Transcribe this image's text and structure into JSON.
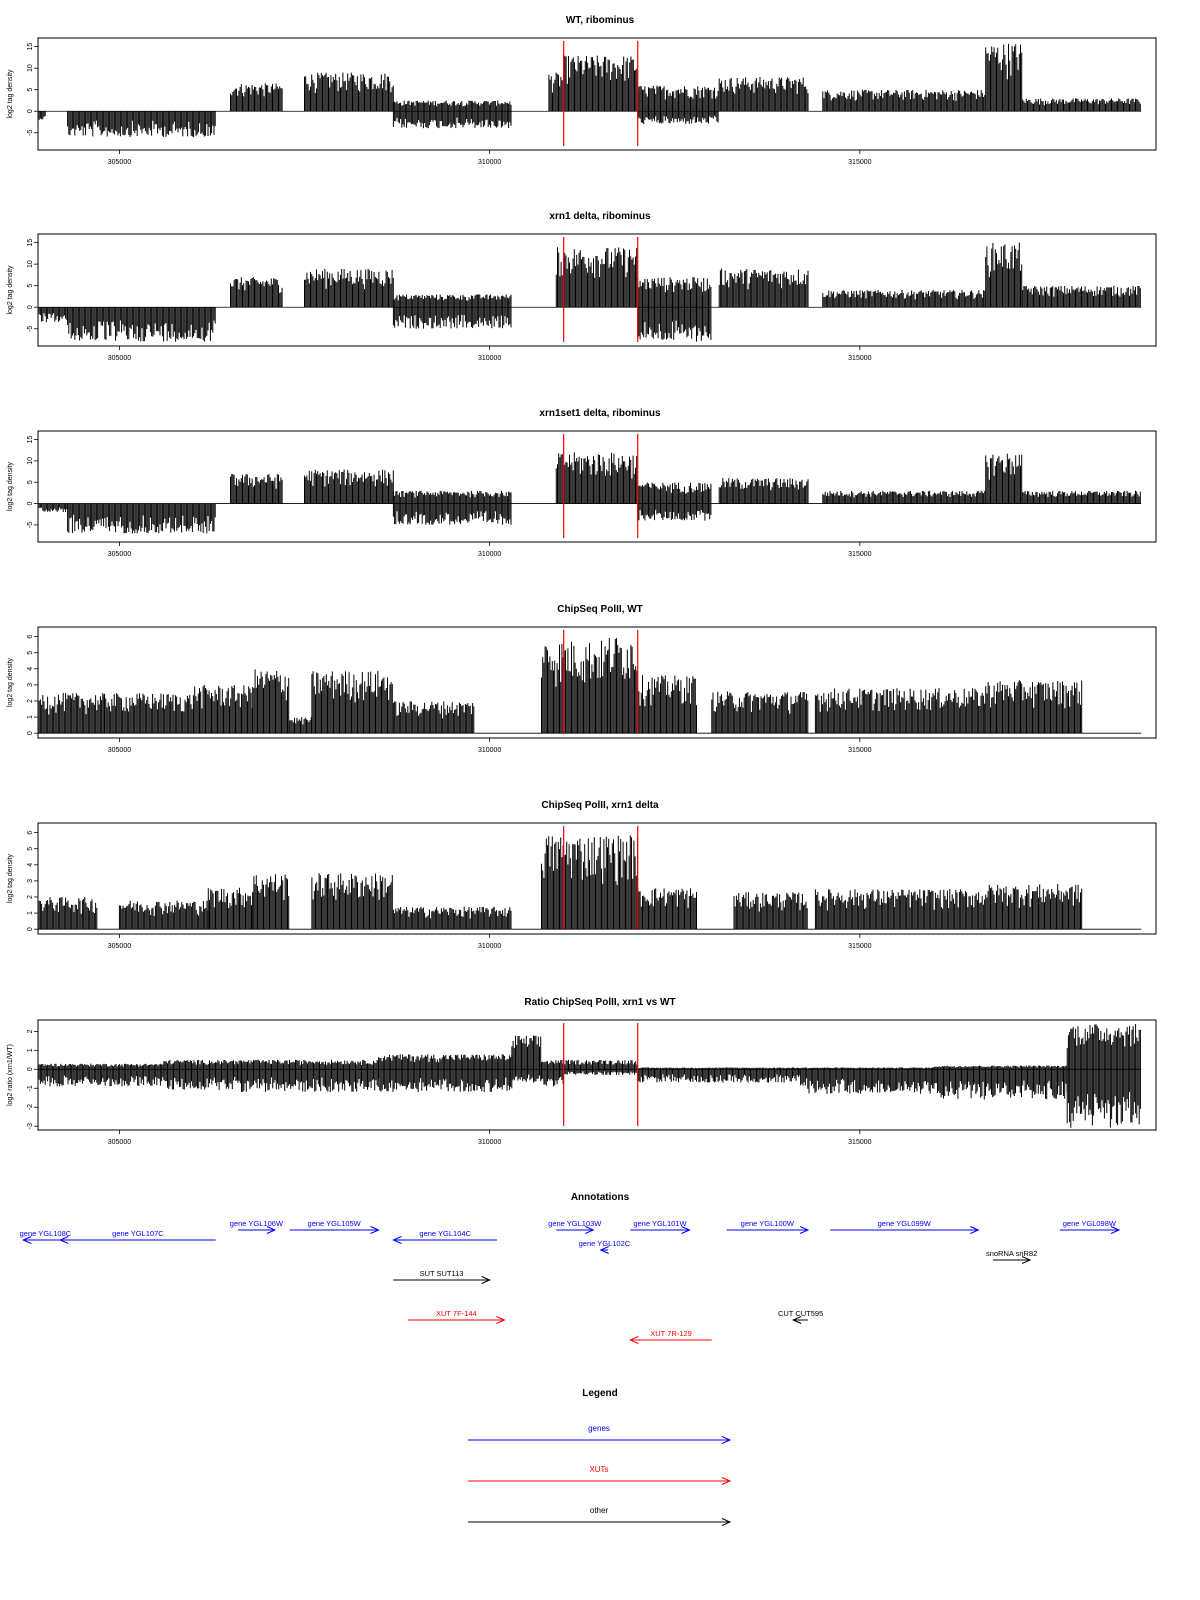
{
  "colors": {
    "gene": "#0000ff",
    "xut": "#ff0000",
    "other": "#000000",
    "marker": "#ff0000",
    "ink": "#000000"
  },
  "chart_data": [
    {
      "type": "area",
      "title": "WT, ribominus",
      "ylabel": "log2 tag density",
      "xlim": [
        303900,
        319000
      ],
      "ylim": [
        -9,
        17
      ],
      "yticks": [
        -5,
        0,
        5,
        10,
        15
      ],
      "xticks": [
        305000,
        310000,
        315000
      ],
      "markers": [
        311000,
        312000
      ],
      "segments": [
        {
          "x0": 303900,
          "x1": 304000,
          "lo": -2,
          "hi": 0
        },
        {
          "x0": 304300,
          "x1": 306300,
          "lo": -6,
          "hi": 0
        },
        {
          "x0": 306500,
          "x1": 307200,
          "lo": 0,
          "hi": 6.5
        },
        {
          "x0": 307500,
          "x1": 308700,
          "lo": 0,
          "hi": 9
        },
        {
          "x0": 308700,
          "x1": 310300,
          "lo": -4,
          "hi": 2.5
        },
        {
          "x0": 310800,
          "x1": 311000,
          "lo": 0,
          "hi": 9
        },
        {
          "x0": 311000,
          "x1": 312000,
          "lo": 0,
          "hi": 13
        },
        {
          "x0": 312000,
          "x1": 313100,
          "lo": -3,
          "hi": 6
        },
        {
          "x0": 313100,
          "x1": 314300,
          "lo": 0,
          "hi": 8
        },
        {
          "x0": 314500,
          "x1": 316700,
          "lo": 0,
          "hi": 5
        },
        {
          "x0": 316700,
          "x1": 317200,
          "lo": 0,
          "hi": 16
        },
        {
          "x0": 317200,
          "x1": 318800,
          "lo": 0,
          "hi": 3
        }
      ]
    },
    {
      "type": "area",
      "title": "xrn1 delta, ribominus",
      "ylabel": "log2 tag density",
      "xlim": [
        303900,
        319000
      ],
      "ylim": [
        -9,
        17
      ],
      "yticks": [
        -5,
        0,
        5,
        10,
        15
      ],
      "xticks": [
        305000,
        310000,
        315000
      ],
      "markers": [
        311000,
        312000
      ],
      "segments": [
        {
          "x0": 303900,
          "x1": 304300,
          "lo": -3.5,
          "hi": 0
        },
        {
          "x0": 304300,
          "x1": 306300,
          "lo": -8,
          "hi": 0
        },
        {
          "x0": 306500,
          "x1": 307200,
          "lo": 0,
          "hi": 7
        },
        {
          "x0": 307500,
          "x1": 308700,
          "lo": 0,
          "hi": 9
        },
        {
          "x0": 308700,
          "x1": 310300,
          "lo": -5,
          "hi": 3
        },
        {
          "x0": 310900,
          "x1": 312000,
          "lo": 0,
          "hi": 14
        },
        {
          "x0": 312000,
          "x1": 313000,
          "lo": -8,
          "hi": 7
        },
        {
          "x0": 313100,
          "x1": 314300,
          "lo": 0,
          "hi": 9
        },
        {
          "x0": 314500,
          "x1": 316700,
          "lo": 0,
          "hi": 4
        },
        {
          "x0": 316700,
          "x1": 317200,
          "lo": 0,
          "hi": 15
        },
        {
          "x0": 317200,
          "x1": 318800,
          "lo": 0,
          "hi": 5
        }
      ]
    },
    {
      "type": "area",
      "title": "xrn1set1 delta, ribominus",
      "ylabel": "log2 tag density",
      "xlim": [
        303900,
        319000
      ],
      "ylim": [
        -9,
        17
      ],
      "yticks": [
        -5,
        0,
        5,
        10,
        15
      ],
      "xticks": [
        305000,
        310000,
        315000
      ],
      "markers": [
        311000,
        312000
      ],
      "segments": [
        {
          "x0": 303900,
          "x1": 304300,
          "lo": -2,
          "hi": 0
        },
        {
          "x0": 304300,
          "x1": 306300,
          "lo": -7,
          "hi": 0
        },
        {
          "x0": 306500,
          "x1": 307200,
          "lo": 0,
          "hi": 7
        },
        {
          "x0": 307500,
          "x1": 308700,
          "lo": 0,
          "hi": 8
        },
        {
          "x0": 308700,
          "x1": 310300,
          "lo": -5,
          "hi": 3
        },
        {
          "x0": 310900,
          "x1": 312000,
          "lo": 0,
          "hi": 12
        },
        {
          "x0": 312000,
          "x1": 313000,
          "lo": -4,
          "hi": 5
        },
        {
          "x0": 313100,
          "x1": 314300,
          "lo": 0,
          "hi": 6
        },
        {
          "x0": 314500,
          "x1": 316700,
          "lo": 0,
          "hi": 3
        },
        {
          "x0": 316700,
          "x1": 317200,
          "lo": 0,
          "hi": 12
        },
        {
          "x0": 317200,
          "x1": 318800,
          "lo": 0,
          "hi": 3
        }
      ]
    },
    {
      "type": "area",
      "title": "ChipSeq PolII, WT",
      "ylabel": "log2 tag density",
      "xlim": [
        303900,
        319000
      ],
      "ylim": [
        -0.3,
        6.6
      ],
      "yticks": [
        0,
        1,
        2,
        3,
        4,
        5,
        6
      ],
      "xticks": [
        305000,
        310000,
        315000
      ],
      "markers": [
        311000,
        312000
      ],
      "segments": [
        {
          "x0": 303900,
          "x1": 304800,
          "lo": 0,
          "hi": 2.5
        },
        {
          "x0": 304800,
          "x1": 306000,
          "lo": 0,
          "hi": 2.5
        },
        {
          "x0": 306000,
          "x1": 306800,
          "lo": 0,
          "hi": 3
        },
        {
          "x0": 306800,
          "x1": 307300,
          "lo": 0,
          "hi": 4
        },
        {
          "x0": 307300,
          "x1": 307600,
          "lo": 0,
          "hi": 1
        },
        {
          "x0": 307600,
          "x1": 308700,
          "lo": 0,
          "hi": 3.9
        },
        {
          "x0": 308700,
          "x1": 309800,
          "lo": 0,
          "hi": 2
        },
        {
          "x0": 310700,
          "x1": 311600,
          "lo": 0,
          "hi": 5.8
        },
        {
          "x0": 311600,
          "x1": 312000,
          "lo": 0,
          "hi": 6.1
        },
        {
          "x0": 312000,
          "x1": 312800,
          "lo": 0,
          "hi": 3.6
        },
        {
          "x0": 313000,
          "x1": 314300,
          "lo": 0,
          "hi": 2.6
        },
        {
          "x0": 314400,
          "x1": 316700,
          "lo": 0,
          "hi": 2.8
        },
        {
          "x0": 316700,
          "x1": 318000,
          "lo": 0,
          "hi": 3.3
        }
      ]
    },
    {
      "type": "area",
      "title": "ChipSeq PolII, xrn1 delta",
      "ylabel": "log2 tag density",
      "xlim": [
        303900,
        319000
      ],
      "ylim": [
        -0.3,
        6.6
      ],
      "yticks": [
        0,
        1,
        2,
        3,
        4,
        5,
        6
      ],
      "xticks": [
        305000,
        310000,
        315000
      ],
      "markers": [
        311000,
        312000
      ],
      "segments": [
        {
          "x0": 303900,
          "x1": 304700,
          "lo": 0,
          "hi": 2
        },
        {
          "x0": 305000,
          "x1": 306200,
          "lo": 0,
          "hi": 1.8
        },
        {
          "x0": 306200,
          "x1": 306800,
          "lo": 0,
          "hi": 2.6
        },
        {
          "x0": 306800,
          "x1": 307300,
          "lo": 0,
          "hi": 3.5
        },
        {
          "x0": 307600,
          "x1": 308700,
          "lo": 0,
          "hi": 3.5
        },
        {
          "x0": 308700,
          "x1": 310300,
          "lo": 0,
          "hi": 1.4
        },
        {
          "x0": 310700,
          "x1": 312000,
          "lo": 0,
          "hi": 5.9
        },
        {
          "x0": 312000,
          "x1": 312800,
          "lo": 0,
          "hi": 2.6
        },
        {
          "x0": 313300,
          "x1": 314300,
          "lo": 0,
          "hi": 2.3
        },
        {
          "x0": 314400,
          "x1": 316700,
          "lo": 0,
          "hi": 2.5
        },
        {
          "x0": 316700,
          "x1": 318000,
          "lo": 0,
          "hi": 2.8
        }
      ]
    },
    {
      "type": "area",
      "title": "Ratio ChipSeq PolII, xrn1 vs WT",
      "ylabel": "log2 ratio (xrn1/WT)",
      "xlim": [
        303900,
        319000
      ],
      "ylim": [
        -3.2,
        2.6
      ],
      "yticks": [
        -3,
        -2,
        -1,
        0,
        1,
        2
      ],
      "xticks": [
        305000,
        310000,
        315000
      ],
      "markers": [
        311000,
        312000
      ],
      "segments": [
        {
          "x0": 303900,
          "x1": 305600,
          "lo": -0.9,
          "hi": 0.3
        },
        {
          "x0": 305600,
          "x1": 306600,
          "lo": -1.1,
          "hi": 0.5
        },
        {
          "x0": 306600,
          "x1": 308500,
          "lo": -1.2,
          "hi": 0.5
        },
        {
          "x0": 308500,
          "x1": 310300,
          "lo": -1.2,
          "hi": 0.8
        },
        {
          "x0": 310300,
          "x1": 310700,
          "lo": -0.7,
          "hi": 1.8
        },
        {
          "x0": 310700,
          "x1": 311000,
          "lo": -0.9,
          "hi": 0.5
        },
        {
          "x0": 311000,
          "x1": 312000,
          "lo": -0.3,
          "hi": 0.5
        },
        {
          "x0": 312000,
          "x1": 314200,
          "lo": -0.7,
          "hi": 0.1
        },
        {
          "x0": 314200,
          "x1": 316000,
          "lo": -1.3,
          "hi": 0.1
        },
        {
          "x0": 316000,
          "x1": 317800,
          "lo": -1.6,
          "hi": 0.2
        },
        {
          "x0": 317800,
          "x1": 318800,
          "lo": -3.1,
          "hi": 2.4
        }
      ]
    }
  ],
  "annotations": {
    "title": "Annotations",
    "features": [
      {
        "label": "gene YGL108C",
        "kind": "gene",
        "from": 304300,
        "to": 303700,
        "row": 0
      },
      {
        "label": "gene YGL107C",
        "kind": "gene",
        "from": 306300,
        "to": 304200,
        "row": 0
      },
      {
        "label": "gene YGL106W",
        "kind": "gene",
        "from": 306600,
        "to": 307100,
        "row": -1
      },
      {
        "label": "gene YGL105W",
        "kind": "gene",
        "from": 307300,
        "to": 308500,
        "row": -1
      },
      {
        "label": "gene YGL104C",
        "kind": "gene",
        "from": 310100,
        "to": 308700,
        "row": 0
      },
      {
        "label": "gene YGL103W",
        "kind": "gene",
        "from": 310900,
        "to": 311400,
        "row": -1
      },
      {
        "label": "gene YGL102C",
        "kind": "gene",
        "from": 311600,
        "to": 311500,
        "row": 1
      },
      {
        "label": "gene YGL101W",
        "kind": "gene",
        "from": 311900,
        "to": 312700,
        "row": -1
      },
      {
        "label": "gene YGL100W",
        "kind": "gene",
        "from": 313200,
        "to": 314300,
        "row": -1
      },
      {
        "label": "gene YGL099W",
        "kind": "gene",
        "from": 314600,
        "to": 316600,
        "row": -1
      },
      {
        "label": "gene YGL098W",
        "kind": "gene",
        "from": 317700,
        "to": 318500,
        "row": -1
      },
      {
        "label": "snoRNA snR82",
        "kind": "other",
        "from": 316800,
        "to": 317300,
        "row": 2
      },
      {
        "label": "SUT SUT113",
        "kind": "other",
        "from": 308700,
        "to": 310000,
        "row": 4
      },
      {
        "label": "CUT CUT595",
        "kind": "other",
        "from": 314300,
        "to": 314100,
        "row": 8
      },
      {
        "label": "XUT 7F-144",
        "kind": "xut",
        "from": 308900,
        "to": 310200,
        "row": 8
      },
      {
        "label": "XUT 7R-129",
        "kind": "xut",
        "from": 313000,
        "to": 311900,
        "row": 10
      }
    ]
  },
  "legend": {
    "title": "Legend",
    "entries": [
      {
        "label": "genes",
        "kind": "gene"
      },
      {
        "label": "XUTs",
        "kind": "xut"
      },
      {
        "label": "other",
        "kind": "other"
      }
    ]
  }
}
